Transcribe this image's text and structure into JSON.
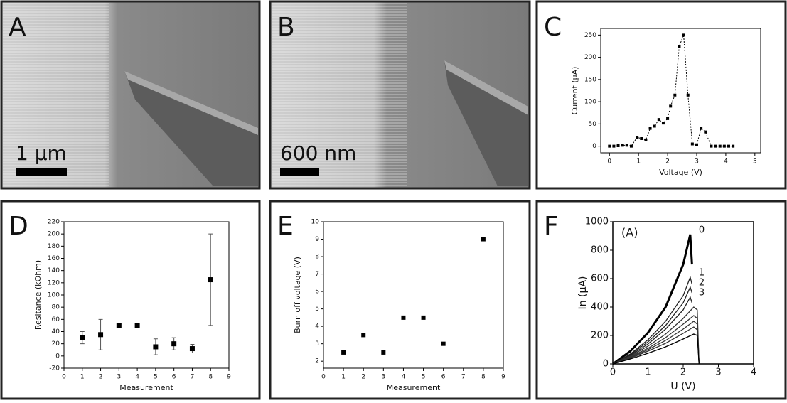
{
  "panels": [
    {
      "label": "A",
      "scale_bar": "1 µm"
    },
    {
      "label": "B",
      "scale_bar": "600 nm"
    }
  ],
  "chart_data": [
    {
      "panel_label": "C",
      "type": "line",
      "line_style": "dotted",
      "color": "#000000",
      "x": [
        0,
        0.15,
        0.3,
        0.45,
        0.6,
        0.75,
        0.95,
        1.1,
        1.25,
        1.4,
        1.55,
        1.7,
        1.85,
        2.0,
        2.1,
        2.25,
        2.4,
        2.55,
        2.7,
        2.85,
        3.0,
        3.15,
        3.3,
        3.5,
        3.65,
        3.8,
        3.95,
        4.1,
        4.25
      ],
      "values": [
        0,
        0,
        1,
        2,
        2,
        0,
        20,
        17,
        14,
        40,
        45,
        60,
        52,
        62,
        90,
        115,
        225,
        250,
        115,
        5,
        3,
        40,
        32,
        0,
        0,
        0,
        0,
        0,
        0
      ],
      "xlabel": "Voltage (V)",
      "ylabel": "Current (µA)",
      "xlim": [
        -0.3,
        5.2
      ],
      "ylim": [
        -15,
        265
      ],
      "xticks": [
        0,
        1,
        2,
        3,
        4,
        5
      ],
      "yticks": [
        0,
        50,
        100,
        150,
        200,
        250
      ]
    },
    {
      "panel_label": "D",
      "type": "errorbar",
      "color": "#000000",
      "x": [
        1,
        2,
        3,
        4,
        5,
        6,
        7,
        8
      ],
      "values": [
        30,
        35,
        50,
        50,
        15,
        20,
        12,
        125
      ],
      "errors": [
        10,
        25,
        0,
        0,
        13,
        10,
        7,
        75
      ],
      "xlabel": "Measurement",
      "ylabel": "Resitance (kOhm)",
      "xlim": [
        0,
        9
      ],
      "ylim": [
        -20,
        220
      ],
      "xticks": [
        0,
        1,
        2,
        3,
        4,
        5,
        6,
        7,
        8,
        9
      ],
      "yticks": [
        -20,
        0,
        20,
        40,
        60,
        80,
        100,
        120,
        140,
        160,
        180,
        200,
        220
      ]
    },
    {
      "panel_label": "E",
      "type": "scatter",
      "color": "#000000",
      "x": [
        1,
        2,
        3,
        4,
        5,
        6,
        8
      ],
      "values": [
        2.5,
        3.5,
        2.5,
        4.5,
        4.5,
        3,
        9
      ],
      "xlabel": "Measurement",
      "ylabel": "Burn off voltage (V)",
      "xlim": [
        0,
        9
      ],
      "ylim": [
        1.6,
        10
      ],
      "xticks": [
        0,
        1,
        2,
        3,
        4,
        5,
        6,
        7,
        8,
        9
      ],
      "yticks": [
        2,
        3,
        4,
        5,
        6,
        7,
        8,
        9,
        10
      ]
    },
    {
      "panel_label": "F",
      "type": "multiline",
      "annotation": "(A)",
      "xlabel": "U (V)",
      "ylabel": "In (µA)",
      "xlim": [
        0,
        4
      ],
      "ylim": [
        0,
        1000
      ],
      "xticks": [
        0,
        1,
        2,
        3,
        4
      ],
      "yticks": [
        0,
        200,
        400,
        600,
        800,
        1000
      ],
      "series": [
        {
          "name": "0",
          "color": "#000000",
          "x": [
            0,
            0.5,
            1,
            1.5,
            2,
            2.2,
            2.25
          ],
          "values": [
            0,
            90,
            220,
            400,
            700,
            910,
            700
          ]
        },
        {
          "name": "1",
          "color": "#222222",
          "x": [
            0,
            0.5,
            1,
            1.5,
            2,
            2.2,
            2.25
          ],
          "values": [
            0,
            70,
            170,
            300,
            480,
            610,
            560
          ]
        },
        {
          "name": "2",
          "color": "#222222",
          "x": [
            0,
            0.5,
            1,
            1.5,
            2,
            2.2,
            2.25
          ],
          "values": [
            0,
            65,
            155,
            270,
            430,
            540,
            500
          ]
        },
        {
          "name": "3",
          "color": "#222222",
          "x": [
            0,
            0.5,
            1,
            1.5,
            2,
            2.2,
            2.25
          ],
          "values": [
            0,
            60,
            140,
            245,
            380,
            470,
            430
          ]
        },
        {
          "color": "#333333",
          "x": [
            0,
            0.5,
            1,
            1.5,
            2,
            2.3,
            2.4,
            2.45
          ],
          "values": [
            0,
            55,
            125,
            210,
            320,
            400,
            380,
            0
          ]
        },
        {
          "color": "#333333",
          "x": [
            0,
            0.5,
            1,
            1.5,
            2,
            2.3,
            2.4,
            2.45
          ],
          "values": [
            0,
            50,
            110,
            185,
            280,
            340,
            320,
            0
          ]
        },
        {
          "color": "#333333",
          "x": [
            0,
            0.5,
            1,
            1.5,
            2,
            2.3,
            2.4,
            2.45
          ],
          "values": [
            0,
            45,
            100,
            165,
            245,
            300,
            280,
            0
          ]
        },
        {
          "color": "#333333",
          "x": [
            0,
            0.5,
            1,
            1.5,
            2,
            2.3,
            2.4,
            2.45
          ],
          "values": [
            0,
            40,
            90,
            145,
            215,
            260,
            240,
            0
          ]
        },
        {
          "color": "#000000",
          "x": [
            0,
            0.5,
            1,
            1.5,
            2,
            2.3,
            2.4,
            2.45
          ],
          "values": [
            0,
            35,
            75,
            120,
            175,
            210,
            200,
            0
          ]
        }
      ]
    }
  ]
}
